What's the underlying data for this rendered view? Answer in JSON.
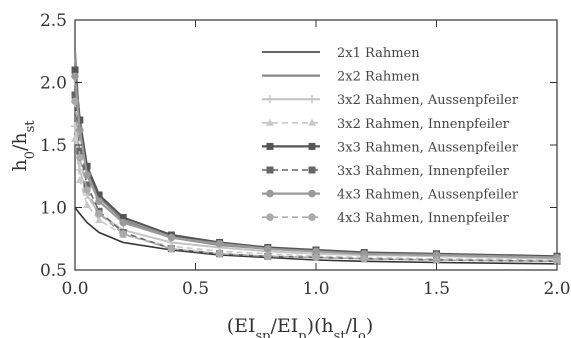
{
  "chart_data": {
    "type": "line",
    "title": "",
    "xlabel": "(EI_sp/EI_p)(h_st/l_o)",
    "ylabel": "h_0/h_st",
    "xlim": [
      0.0,
      2.0
    ],
    "ylim": [
      0.5,
      2.5
    ],
    "xticks": [
      "0.0",
      "0.5",
      "1.0",
      "1.5",
      "2.0"
    ],
    "yticks": [
      "0.5",
      "1.0",
      "1.5",
      "2.0",
      "2.5"
    ],
    "grid": false,
    "legend_position": "top-right",
    "series": [
      {
        "name": "2x1 Rahmen",
        "color": "#333333",
        "dash": "",
        "marker": "none",
        "width": 1.6,
        "x": [
          0.0,
          0.02,
          0.05,
          0.1,
          0.2,
          0.4,
          0.6,
          0.8,
          1.0,
          1.2,
          1.5,
          2.0
        ],
        "y": [
          1.0,
          0.95,
          0.88,
          0.8,
          0.72,
          0.66,
          0.62,
          0.6,
          0.58,
          0.57,
          0.56,
          0.55
        ]
      },
      {
        "name": "2x2 Rahmen",
        "color": "#888888",
        "dash": "",
        "marker": "none",
        "width": 2.2,
        "x": [
          0.0,
          0.02,
          0.05,
          0.1,
          0.2,
          0.4,
          0.6,
          0.8,
          1.0,
          1.2,
          1.5,
          2.0
        ],
        "y": [
          2.25,
          1.6,
          1.3,
          1.08,
          0.9,
          0.76,
          0.7,
          0.67,
          0.65,
          0.63,
          0.62,
          0.6
        ]
      },
      {
        "name": "3x2 Rahmen, Aussenpfeiler",
        "color": "#c4c4c4",
        "dash": "",
        "marker": "cross",
        "width": 2.0,
        "x": [
          0.0,
          0.02,
          0.05,
          0.1,
          0.2,
          0.4,
          0.6,
          0.8,
          1.0,
          1.2,
          1.5,
          2.0
        ],
        "y": [
          1.65,
          1.3,
          1.1,
          0.95,
          0.82,
          0.72,
          0.68,
          0.65,
          0.63,
          0.62,
          0.61,
          0.59
        ]
      },
      {
        "name": "3x2 Rahmen, Innenpfeiler",
        "color": "#c8c8c8",
        "dash": "6,4",
        "marker": "triangle",
        "width": 1.6,
        "x": [
          0.0,
          0.02,
          0.05,
          0.1,
          0.2,
          0.4,
          0.6,
          0.8,
          1.0,
          1.2,
          1.5,
          2.0
        ],
        "y": [
          1.55,
          1.22,
          1.02,
          0.9,
          0.78,
          0.69,
          0.65,
          0.63,
          0.61,
          0.6,
          0.59,
          0.58
        ]
      },
      {
        "name": "3x3 Rahmen, Aussenpfeiler",
        "color": "#555555",
        "dash": "",
        "marker": "square",
        "width": 2.2,
        "x": [
          0.0,
          0.02,
          0.05,
          0.1,
          0.2,
          0.4,
          0.6,
          0.8,
          1.0,
          1.2,
          1.5,
          2.0
        ],
        "y": [
          2.1,
          1.7,
          1.33,
          1.1,
          0.92,
          0.78,
          0.72,
          0.68,
          0.66,
          0.64,
          0.63,
          0.61
        ]
      },
      {
        "name": "3x3 Rahmen, Innenpfeiler",
        "color": "#666666",
        "dash": "6,4",
        "marker": "square",
        "width": 1.6,
        "x": [
          0.0,
          0.02,
          0.05,
          0.1,
          0.2,
          0.4,
          0.6,
          0.8,
          1.0,
          1.2,
          1.5,
          2.0
        ],
        "y": [
          1.9,
          1.45,
          1.18,
          0.97,
          0.8,
          0.67,
          0.63,
          0.61,
          0.6,
          0.59,
          0.58,
          0.57
        ]
      },
      {
        "name": "4x3 Rahmen, Aussenpfeiler",
        "color": "#9a9a9a",
        "dash": "",
        "marker": "circle",
        "width": 2.2,
        "x": [
          0.0,
          0.02,
          0.05,
          0.1,
          0.2,
          0.4,
          0.6,
          0.8,
          1.0,
          1.2,
          1.5,
          2.0
        ],
        "y": [
          2.05,
          1.62,
          1.26,
          1.05,
          0.88,
          0.76,
          0.71,
          0.67,
          0.65,
          0.63,
          0.62,
          0.6
        ]
      },
      {
        "name": "4x3 Rahmen, Innenpfeiler",
        "color": "#aaaaaa",
        "dash": "6,4",
        "marker": "circle",
        "width": 1.6,
        "x": [
          0.0,
          0.02,
          0.05,
          0.1,
          0.2,
          0.4,
          0.6,
          0.8,
          1.0,
          1.2,
          1.5,
          2.0
        ],
        "y": [
          1.85,
          1.4,
          1.14,
          0.95,
          0.79,
          0.67,
          0.63,
          0.61,
          0.6,
          0.59,
          0.58,
          0.57
        ]
      }
    ]
  }
}
